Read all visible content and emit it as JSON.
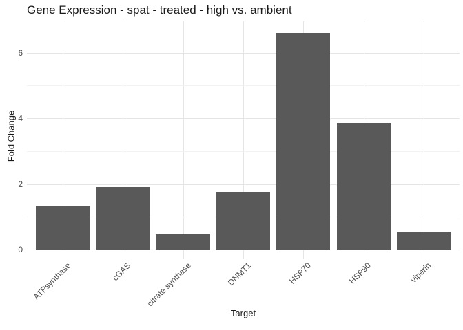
{
  "chart_data": {
    "type": "bar",
    "title": "Gene Expression - spat - treated - high vs. ambient",
    "xlabel": "Target",
    "ylabel": "Fold Change",
    "categories": [
      "ATPsynthase",
      "cGAS",
      "citrate synthase",
      "DNMT1",
      "HSP70",
      "HSP90",
      "viperin"
    ],
    "values": [
      1.32,
      1.9,
      0.47,
      1.73,
      6.6,
      3.86,
      0.53
    ],
    "ylim": [
      0,
      6.9
    ],
    "yticks": [
      0,
      2,
      4,
      6
    ],
    "yticks_minor": [
      1,
      3,
      5
    ],
    "bar_color": "#595959",
    "grid": true,
    "grid_major_color": "#e5e5e5",
    "grid_minor_color": "#f2f2f2",
    "legend": "none",
    "x_tick_label_angle": 45,
    "background_color": "#ffffff",
    "text_color": "#1a1a1a",
    "tick_label_color": "#4d4d4d"
  }
}
